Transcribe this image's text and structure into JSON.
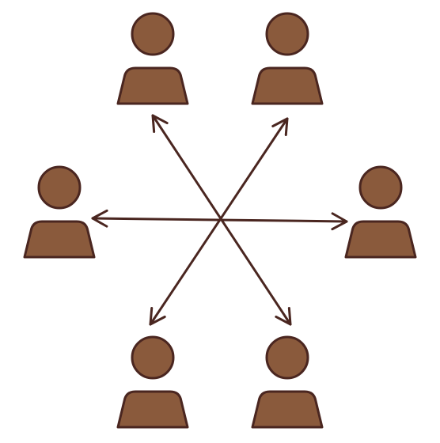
{
  "diagram": {
    "kind": "hub-network",
    "fill_color": "#8a5a3c",
    "stroke_color": "#4a2620",
    "background": "#ffffff",
    "people": [
      {
        "id": "person-top-left",
        "icon": "person-icon"
      },
      {
        "id": "person-top-right",
        "icon": "person-icon"
      },
      {
        "id": "person-left",
        "icon": "person-icon"
      },
      {
        "id": "person-right",
        "icon": "person-icon"
      },
      {
        "id": "person-bottom-left",
        "icon": "person-icon"
      },
      {
        "id": "person-bottom-right",
        "icon": "person-icon"
      }
    ],
    "connectors": [
      {
        "id": "arrow-top-left-to-bottom-right",
        "ends": [
          "person-top-left",
          "person-bottom-right"
        ],
        "arrowheads": "both"
      },
      {
        "id": "arrow-top-right-to-bottom-left",
        "ends": [
          "person-top-right",
          "person-bottom-left"
        ],
        "arrowheads": "both"
      },
      {
        "id": "arrow-left-to-right",
        "ends": [
          "person-left",
          "person-right"
        ],
        "arrowheads": "both"
      }
    ]
  }
}
